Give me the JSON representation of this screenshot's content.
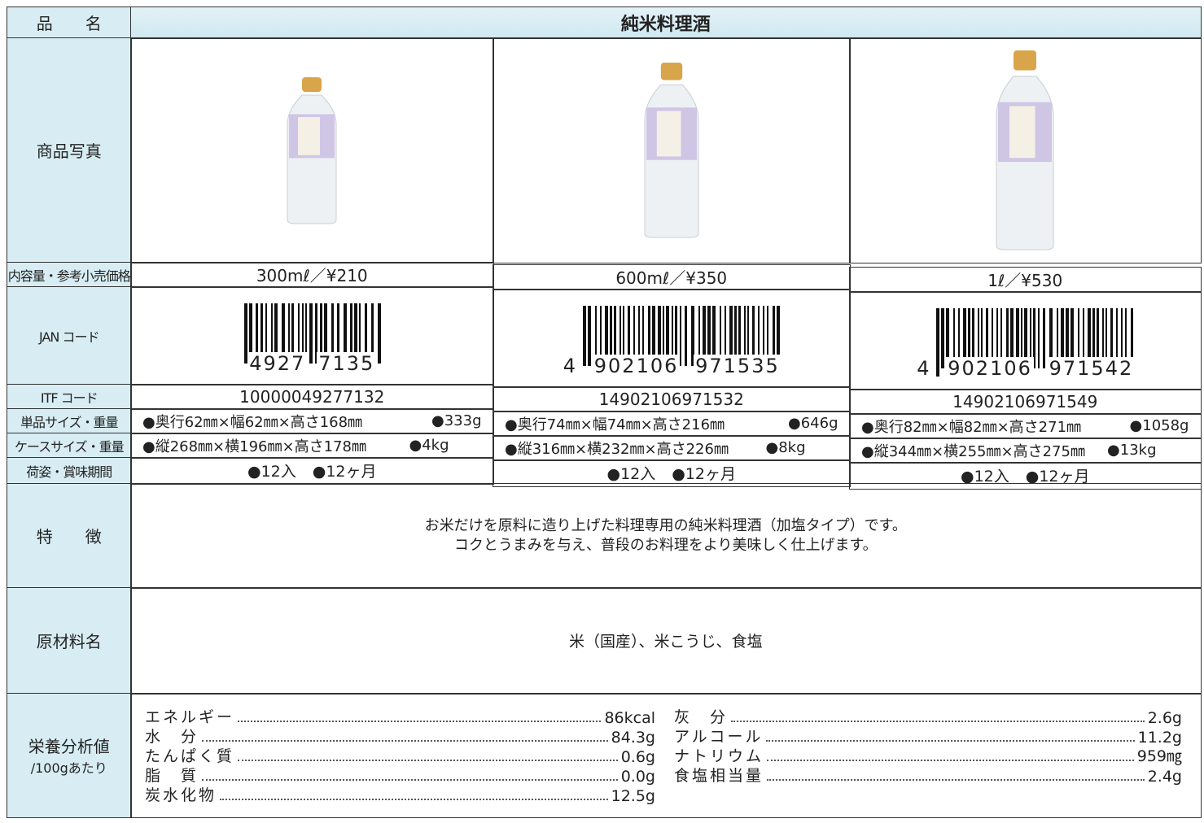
{
  "table": {
    "row_labels": [
      "品　　名",
      "商品写真",
      "内容量・参考小売価格",
      "JAN コード",
      "ITF コード",
      "単品サイズ・重量",
      "ケースサイズ・重量",
      "荷姿・賞味期間",
      "特　　徴",
      "原材料名",
      "栄養分析値"
    ],
    "nutrition_label_sub": "/100gあたり",
    "product_name": "純米料理酒",
    "products": [
      {
        "content": "300mℓ／¥210",
        "jan": [
          "4927",
          "7135"
        ],
        "itf": "10000049277132",
        "unit_size": "●奥行62㎜×幅62㎜×高さ168㎜",
        "unit_weight": "●333g",
        "case_size": "●縦268㎜×横196㎜×高さ178㎜",
        "case_weight": "●4kg",
        "packing": "●12入",
        "shelf_life": "●12ヶ月"
      },
      {
        "content": "600mℓ／¥350",
        "jan": [
          "4",
          "902106",
          "971535"
        ],
        "itf": "14902106971532",
        "unit_size": "●奥行74㎜×幅74㎜×高さ216㎜",
        "unit_weight": "●646g",
        "case_size": "●縦316㎜×横232㎜×高さ226㎜",
        "case_weight": "●8kg",
        "packing": "●12入",
        "shelf_life": "●12ヶ月"
      },
      {
        "content": "1ℓ／¥530",
        "jan": [
          "4",
          "902106",
          "971542"
        ],
        "itf": "14902106971549",
        "unit_size": "●奥行82㎜×幅82㎜×高さ271㎜",
        "unit_weight": "●1058g",
        "case_size": "●縦344㎜×横255㎜×高さ275㎜",
        "case_weight": "●13kg",
        "packing": "●12入",
        "shelf_life": "●12ヶ月"
      }
    ],
    "features": [
      "お米だけを原料に造り上げた料理専用の純米料理酒（加塩タイプ）です。",
      "コクとうまみを与え、普段のお料理をより美味しく仕上げます。"
    ],
    "ingredients": "米（国産）、米こうじ、食塩",
    "nutrition": {
      "left": [
        {
          "name": "エネルギー",
          "value": "86kcal"
        },
        {
          "name": "水　分",
          "value": "84.3g"
        },
        {
          "name": "たんぱく質",
          "value": "0.6g"
        },
        {
          "name": "脂　質",
          "value": "0.0g"
        },
        {
          "name": "炭水化物",
          "value": "12.5g"
        }
      ],
      "right": [
        {
          "name": "灰　分",
          "value": "2.6g"
        },
        {
          "name": "アルコール",
          "value": "11.2g"
        },
        {
          "name": "ナトリウム",
          "value": "959㎎"
        },
        {
          "name": "食塩相当量",
          "value": "2.4g"
        }
      ]
    }
  }
}
